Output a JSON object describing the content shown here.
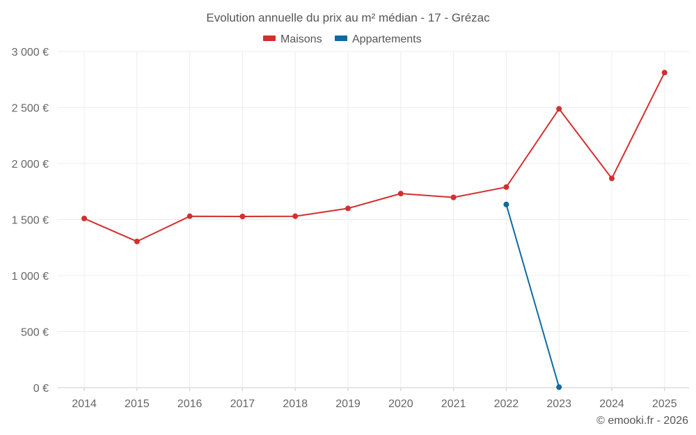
{
  "chart_data": {
    "type": "line",
    "title": "Evolution annuelle du prix au m² médian - 17 - Grézac",
    "categories": [
      "2014",
      "2015",
      "2016",
      "2017",
      "2018",
      "2019",
      "2020",
      "2021",
      "2022",
      "2023",
      "2024",
      "2025"
    ],
    "series": [
      {
        "name": "Maisons",
        "color": "#d32f2f",
        "values": [
          1510,
          1305,
          1530,
          1528,
          1530,
          1600,
          1732,
          1698,
          1790,
          2488,
          1868,
          2812
        ]
      },
      {
        "name": "Appartements",
        "color": "#0d6aa3",
        "values": [
          null,
          null,
          null,
          null,
          null,
          null,
          null,
          null,
          1635,
          5,
          null,
          null
        ]
      }
    ],
    "ylim": [
      0,
      3000
    ],
    "yticks": [
      0,
      500,
      1000,
      1500,
      2000,
      2500,
      3000
    ],
    "ytick_labels": [
      "0 €",
      "500 €",
      "1 000 €",
      "1 500 €",
      "2 000 €",
      "2 500 €",
      "3 000 €"
    ],
    "xlabel": "",
    "ylabel": "",
    "grid": true,
    "legend_position": "top-center"
  },
  "credit": "© emooki.fr - 2026"
}
